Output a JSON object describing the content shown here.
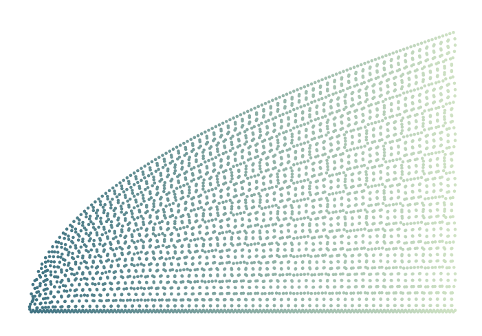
{
  "chart_data": {
    "type": "scatter",
    "title": "",
    "xlabel": "",
    "ylabel": "",
    "axes_visible": false,
    "grid": false,
    "legend": "none",
    "description_of_pattern": "",
    "series": [
      {
        "name": "",
        "x_range": [
          0,
          1
        ],
        "y_envelope": "sqrt",
        "columns": 120,
        "rows_per_column_at_max": 40,
        "wave_cycles_across": 46,
        "color_start": "#3f7282",
        "color_end": "#cfe2c4",
        "color_by": "x"
      }
    ],
    "xlim": [
      0,
      1
    ],
    "ylim": [
      0,
      1.04
    ]
  }
}
